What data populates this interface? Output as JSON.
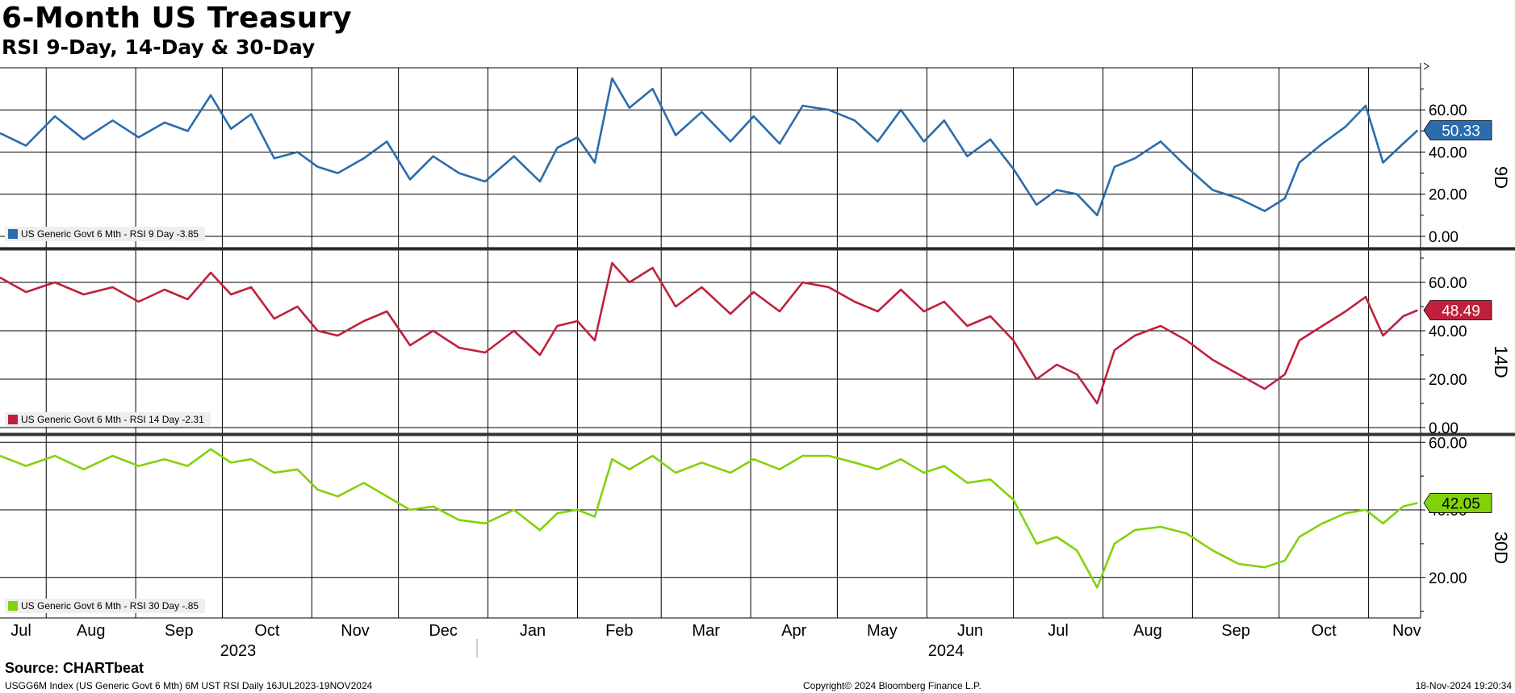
{
  "title": "6-Month US Treasury",
  "subtitle": "RSI 9-Day, 14-Day & 30-Day",
  "source": "Source: CHARTbeat",
  "footer": {
    "left": "USGG6M Index (US Generic Govt 6 Mth) 6M UST RSI  Daily 16JUL2023-19NOV2024",
    "center": "Copyright© 2024 Bloomberg Finance L.P.",
    "right": "18-Nov-2024 19:20:34"
  },
  "x_axis": {
    "months": [
      "Jul",
      "Aug",
      "Sep",
      "Oct",
      "Nov",
      "Dec",
      "Jan",
      "Feb",
      "Mar",
      "Apr",
      "May",
      "Jun",
      "Jul",
      "Aug",
      "Sep",
      "Oct",
      "Nov"
    ],
    "years": [
      "2023",
      "2024"
    ]
  },
  "chart_data": [
    {
      "type": "line",
      "panel_label": "9D",
      "legend": "US Generic Govt 6 Mth - RSI 9 Day -3.85",
      "last_value_label": "50.33",
      "color": "#2a6cad",
      "y_ticks": [
        "60.00",
        "40.00",
        "20.00",
        "0.00"
      ],
      "ylim": [
        -5,
        80
      ],
      "series": [
        {
          "x": [
            "2023-07-16",
            "2023-07-25",
            "2023-08-04",
            "2023-08-14",
            "2023-08-24",
            "2023-09-02",
            "2023-09-11",
            "2023-09-19",
            "2023-09-27",
            "2023-10-04",
            "2023-10-11",
            "2023-10-19",
            "2023-10-27",
            "2023-11-03",
            "2023-11-10",
            "2023-11-19",
            "2023-11-27",
            "2023-12-05",
            "2023-12-13",
            "2023-12-22",
            "2023-12-31",
            "2024-01-10",
            "2024-01-19",
            "2024-01-25",
            "2024-02-01",
            "2024-02-07",
            "2024-02-13",
            "2024-02-19",
            "2024-02-27",
            "2024-03-06",
            "2024-03-15",
            "2024-03-25",
            "2024-04-02",
            "2024-04-11",
            "2024-04-19",
            "2024-04-28",
            "2024-05-07",
            "2024-05-15",
            "2024-05-23",
            "2024-05-31",
            "2024-06-07",
            "2024-06-15",
            "2024-06-23",
            "2024-07-01",
            "2024-07-09",
            "2024-07-16",
            "2024-07-23",
            "2024-07-30",
            "2024-08-05",
            "2024-08-12",
            "2024-08-21",
            "2024-08-30",
            "2024-09-08",
            "2024-09-17",
            "2024-09-26",
            "2024-10-03",
            "2024-10-08",
            "2024-10-16",
            "2024-10-24",
            "2024-10-31",
            "2024-11-06",
            "2024-11-13",
            "2024-11-18"
          ],
          "y": [
            49,
            43,
            57,
            46,
            55,
            47,
            54,
            50,
            67,
            51,
            58,
            37,
            40,
            33,
            30,
            37,
            45,
            27,
            38,
            30,
            26,
            38,
            26,
            42,
            47,
            35,
            75,
            61,
            70,
            48,
            59,
            45,
            57,
            44,
            62,
            60,
            55,
            45,
            60,
            45,
            55,
            38,
            46,
            32,
            15,
            22,
            20,
            10,
            33,
            37,
            45,
            33,
            22,
            18,
            12,
            18,
            35,
            44,
            52,
            62,
            35,
            44,
            50.33
          ]
        }
      ]
    },
    {
      "type": "line",
      "panel_label": "14D",
      "legend": "US Generic Govt 6 Mth - RSI 14 Day -2.31",
      "last_value_label": "48.49",
      "color": "#c0203c",
      "y_ticks": [
        "60.00",
        "40.00",
        "20.00",
        "0.00"
      ],
      "ylim": [
        -2,
        73
      ],
      "series": [
        {
          "x": [
            "2023-07-16",
            "2023-07-25",
            "2023-08-04",
            "2023-08-14",
            "2023-08-24",
            "2023-09-02",
            "2023-09-11",
            "2023-09-19",
            "2023-09-27",
            "2023-10-04",
            "2023-10-11",
            "2023-10-19",
            "2023-10-27",
            "2023-11-03",
            "2023-11-10",
            "2023-11-19",
            "2023-11-27",
            "2023-12-05",
            "2023-12-13",
            "2023-12-22",
            "2023-12-31",
            "2024-01-10",
            "2024-01-19",
            "2024-01-25",
            "2024-02-01",
            "2024-02-07",
            "2024-02-13",
            "2024-02-19",
            "2024-02-27",
            "2024-03-06",
            "2024-03-15",
            "2024-03-25",
            "2024-04-02",
            "2024-04-11",
            "2024-04-19",
            "2024-04-28",
            "2024-05-07",
            "2024-05-15",
            "2024-05-23",
            "2024-05-31",
            "2024-06-07",
            "2024-06-15",
            "2024-06-23",
            "2024-07-01",
            "2024-07-09",
            "2024-07-16",
            "2024-07-23",
            "2024-07-30",
            "2024-08-05",
            "2024-08-12",
            "2024-08-21",
            "2024-08-30",
            "2024-09-08",
            "2024-09-17",
            "2024-09-26",
            "2024-10-03",
            "2024-10-08",
            "2024-10-16",
            "2024-10-24",
            "2024-10-31",
            "2024-11-06",
            "2024-11-13",
            "2024-11-18"
          ],
          "y": [
            62,
            56,
            60,
            55,
            58,
            52,
            57,
            53,
            64,
            55,
            58,
            45,
            50,
            40,
            38,
            44,
            48,
            34,
            40,
            33,
            31,
            40,
            30,
            42,
            44,
            36,
            68,
            60,
            66,
            50,
            58,
            47,
            56,
            48,
            60,
            58,
            52,
            48,
            57,
            48,
            52,
            42,
            46,
            36,
            20,
            26,
            22,
            10,
            32,
            38,
            42,
            36,
            28,
            22,
            16,
            22,
            36,
            42,
            48,
            54,
            38,
            46,
            48.49
          ]
        }
      ]
    },
    {
      "type": "line",
      "panel_label": "30D",
      "legend": "US Generic Govt 6 Mth - RSI 30 Day -.85",
      "last_value_label": "42.05",
      "color": "#82d20a",
      "y_ticks": [
        "60.00",
        "40.00",
        "20.00"
      ],
      "ylim": [
        8,
        61.5
      ],
      "series": [
        {
          "x": [
            "2023-07-16",
            "2023-07-25",
            "2023-08-04",
            "2023-08-14",
            "2023-08-24",
            "2023-09-02",
            "2023-09-11",
            "2023-09-19",
            "2023-09-27",
            "2023-10-04",
            "2023-10-11",
            "2023-10-19",
            "2023-10-27",
            "2023-11-03",
            "2023-11-10",
            "2023-11-19",
            "2023-11-27",
            "2023-12-05",
            "2023-12-13",
            "2023-12-22",
            "2023-12-31",
            "2024-01-10",
            "2024-01-19",
            "2024-01-25",
            "2024-02-01",
            "2024-02-07",
            "2024-02-13",
            "2024-02-19",
            "2024-02-27",
            "2024-03-06",
            "2024-03-15",
            "2024-03-25",
            "2024-04-02",
            "2024-04-11",
            "2024-04-19",
            "2024-04-28",
            "2024-05-07",
            "2024-05-15",
            "2024-05-23",
            "2024-05-31",
            "2024-06-07",
            "2024-06-15",
            "2024-06-23",
            "2024-07-01",
            "2024-07-09",
            "2024-07-16",
            "2024-07-23",
            "2024-07-30",
            "2024-08-05",
            "2024-08-12",
            "2024-08-21",
            "2024-08-30",
            "2024-09-08",
            "2024-09-17",
            "2024-09-26",
            "2024-10-03",
            "2024-10-08",
            "2024-10-16",
            "2024-10-24",
            "2024-10-31",
            "2024-11-06",
            "2024-11-13",
            "2024-11-18"
          ],
          "y": [
            56,
            53,
            56,
            52,
            56,
            53,
            55,
            53,
            58,
            54,
            55,
            51,
            52,
            46,
            44,
            48,
            44,
            40,
            41,
            37,
            36,
            40,
            34,
            39,
            40,
            38,
            55,
            52,
            56,
            51,
            54,
            51,
            55,
            52,
            56,
            56,
            54,
            52,
            55,
            51,
            53,
            48,
            49,
            43,
            30,
            32,
            28,
            17,
            30,
            34,
            35,
            33,
            28,
            24,
            23,
            25,
            32,
            36,
            39,
            40,
            36,
            41,
            42.05
          ]
        }
      ]
    }
  ]
}
